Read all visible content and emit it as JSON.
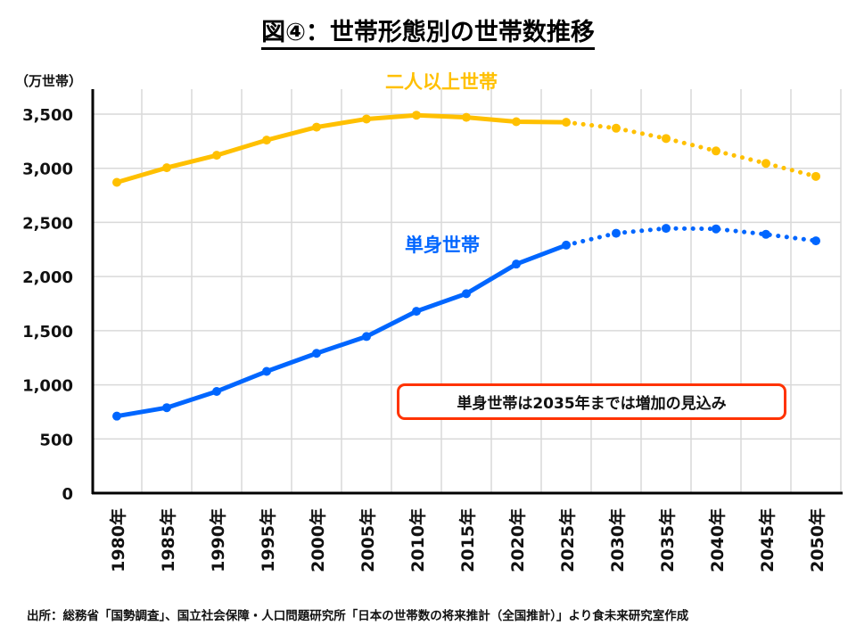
{
  "title": "図④：世帯形態別の世帯数推移",
  "unit_label": "（万世帯）",
  "annotation": "単身世帯は2035年までは増加の見込み",
  "source": "出所：総務省「国勢調査」、国立社会保障・人口問題研究所「日本の世帯数の将来推計（全国推計）」より食未来研究室作成",
  "colors": {
    "two_plus": "#FFC000",
    "single": "#0066FF",
    "annotation_border": "#FF3300",
    "grid": "#D9D9D9",
    "axis": "#000000"
  },
  "chart_data": {
    "type": "line",
    "title": "図④：世帯形態別の世帯数推移",
    "xlabel": "",
    "ylabel": "（万世帯）",
    "ylim": [
      0,
      3500
    ],
    "yticks": [
      0,
      500,
      1000,
      1500,
      2000,
      2500,
      3000,
      3500
    ],
    "ytick_labels": [
      "0",
      "500",
      "1,000",
      "1,500",
      "2,000",
      "2,500",
      "3,000",
      "3,500"
    ],
    "grid": true,
    "categories": [
      "1980年",
      "1985年",
      "1990年",
      "1995年",
      "2000年",
      "2005年",
      "2010年",
      "2015年",
      "2020年",
      "2025年",
      "2030年",
      "2035年",
      "2040年",
      "2045年",
      "2050年"
    ],
    "projection_start_index": 9,
    "series": [
      {
        "name": "二人以上世帯",
        "color": "#FFC000",
        "values": [
          2870,
          3005,
          3120,
          3260,
          3380,
          3455,
          3490,
          3470,
          3430,
          3425,
          3370,
          3275,
          3160,
          3045,
          2925
        ]
      },
      {
        "name": "単身世帯",
        "color": "#0066FF",
        "values": [
          711,
          789,
          939,
          1124,
          1291,
          1446,
          1679,
          1842,
          2115,
          2290,
          2400,
          2445,
          2440,
          2390,
          2330
        ]
      }
    ],
    "annotations": [
      "単身世帯は2035年までは増加の見込み"
    ],
    "note": "Solid lines = actual (to 2025); dotted = projection (2025 onward)"
  }
}
